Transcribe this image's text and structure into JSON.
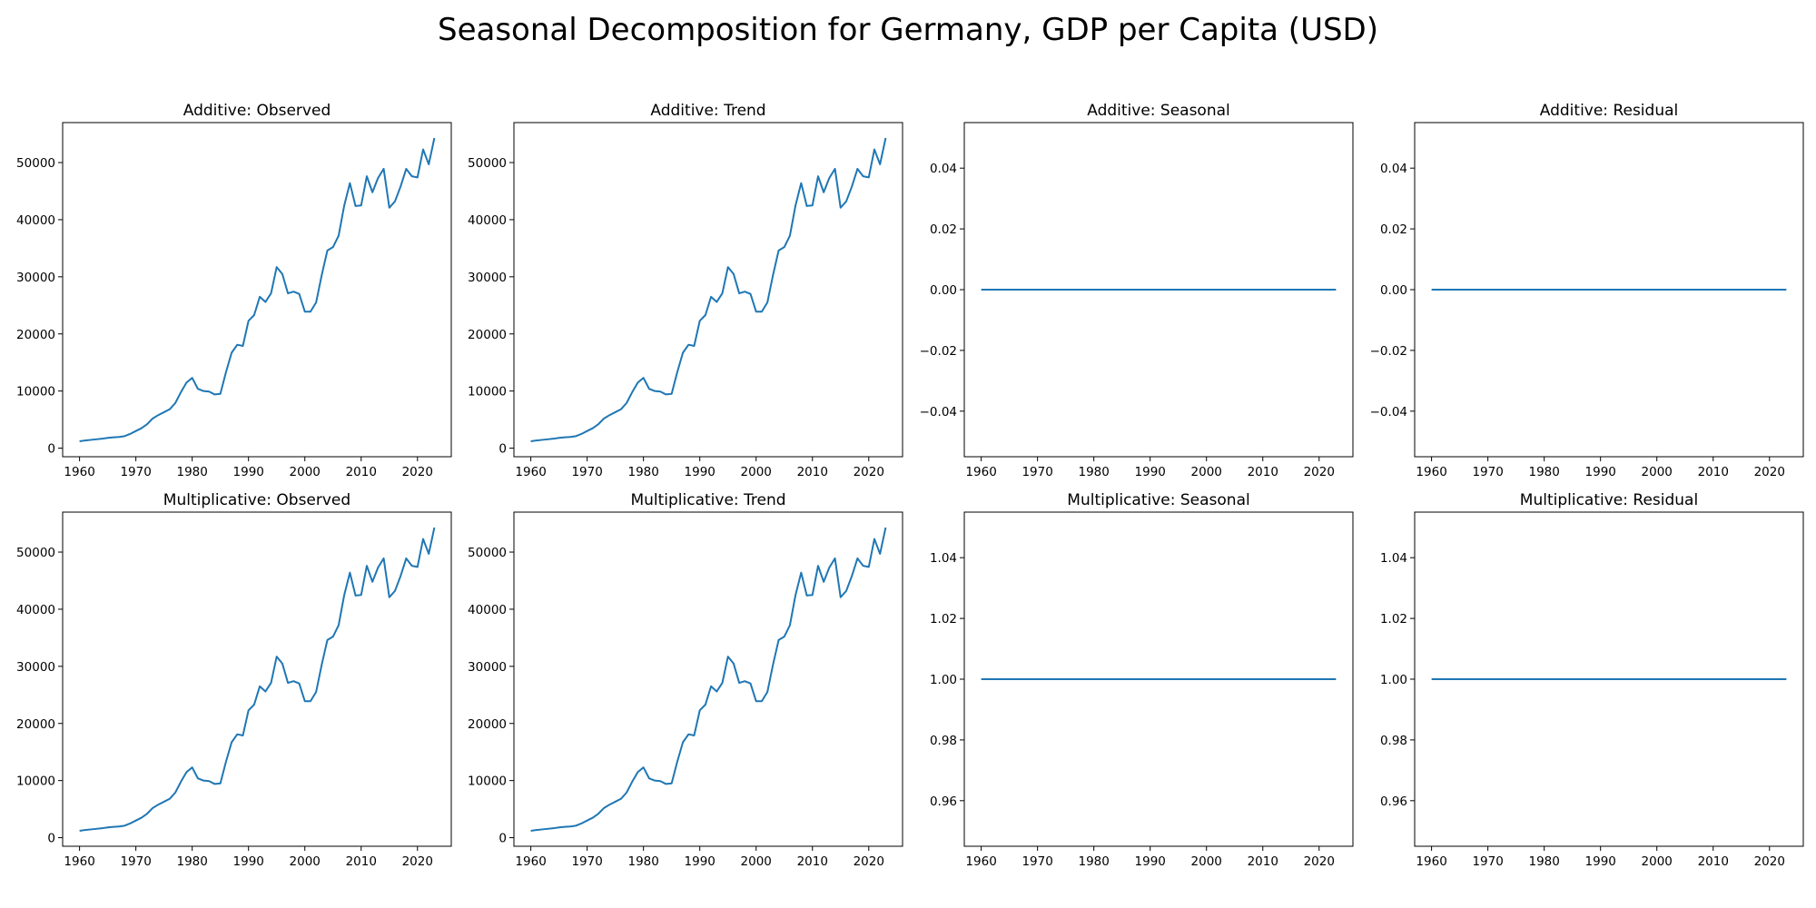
{
  "figure": {
    "suptitle": "Seasonal Decomposition for Germany, GDP per Capita (USD)",
    "line_color": "#1f77b4"
  },
  "chart_data": [
    {
      "type": "line",
      "title": "Additive: Observed",
      "xlim": [
        1957,
        2026
      ],
      "xticks": [
        1960,
        1970,
        1980,
        1990,
        2000,
        2010,
        2020
      ],
      "ylim": [
        -1500,
        57000
      ],
      "yticks": [
        0,
        10000,
        20000,
        30000,
        40000,
        50000
      ],
      "ytick_labels": [
        "0",
        "10000",
        "20000",
        "30000",
        "40000",
        "50000"
      ],
      "series": [
        {
          "values_ref": "gdp"
        }
      ]
    },
    {
      "type": "line",
      "title": "Additive: Trend",
      "xlim": [
        1957,
        2026
      ],
      "xticks": [
        1960,
        1970,
        1980,
        1990,
        2000,
        2010,
        2020
      ],
      "ylim": [
        -1500,
        57000
      ],
      "yticks": [
        0,
        10000,
        20000,
        30000,
        40000,
        50000
      ],
      "ytick_labels": [
        "0",
        "10000",
        "20000",
        "30000",
        "40000",
        "50000"
      ],
      "series": [
        {
          "values_ref": "gdp"
        }
      ]
    },
    {
      "type": "line",
      "title": "Additive: Seasonal",
      "xlim": [
        1957,
        2026
      ],
      "xticks": [
        1960,
        1970,
        1980,
        1990,
        2000,
        2010,
        2020
      ],
      "ylim": [
        -0.055,
        0.055
      ],
      "yticks": [
        -0.04,
        -0.02,
        0.0,
        0.02,
        0.04
      ],
      "ytick_labels": [
        "−0.04",
        "−0.02",
        "0.00",
        "0.02",
        "0.04"
      ],
      "series": [
        {
          "constant": 0.0
        }
      ]
    },
    {
      "type": "line",
      "title": "Additive: Residual",
      "xlim": [
        1957,
        2026
      ],
      "xticks": [
        1960,
        1970,
        1980,
        1990,
        2000,
        2010,
        2020
      ],
      "ylim": [
        -0.055,
        0.055
      ],
      "yticks": [
        -0.04,
        -0.02,
        0.0,
        0.02,
        0.04
      ],
      "ytick_labels": [
        "−0.04",
        "−0.02",
        "0.00",
        "0.02",
        "0.04"
      ],
      "series": [
        {
          "constant": 0.0
        }
      ]
    },
    {
      "type": "line",
      "title": "Multiplicative: Observed",
      "xlim": [
        1957,
        2026
      ],
      "xticks": [
        1960,
        1970,
        1980,
        1990,
        2000,
        2010,
        2020
      ],
      "ylim": [
        -1500,
        57000
      ],
      "yticks": [
        0,
        10000,
        20000,
        30000,
        40000,
        50000
      ],
      "ytick_labels": [
        "0",
        "10000",
        "20000",
        "30000",
        "40000",
        "50000"
      ],
      "series": [
        {
          "values_ref": "gdp"
        }
      ]
    },
    {
      "type": "line",
      "title": "Multiplicative: Trend",
      "xlim": [
        1957,
        2026
      ],
      "xticks": [
        1960,
        1970,
        1980,
        1990,
        2000,
        2010,
        2020
      ],
      "ylim": [
        -1500,
        57000
      ],
      "yticks": [
        0,
        10000,
        20000,
        30000,
        40000,
        50000
      ],
      "ytick_labels": [
        "0",
        "10000",
        "20000",
        "30000",
        "40000",
        "50000"
      ],
      "series": [
        {
          "values_ref": "gdp"
        }
      ]
    },
    {
      "type": "line",
      "title": "Multiplicative: Seasonal",
      "xlim": [
        1957,
        2026
      ],
      "xticks": [
        1960,
        1970,
        1980,
        1990,
        2000,
        2010,
        2020
      ],
      "ylim": [
        0.945,
        1.055
      ],
      "yticks": [
        0.96,
        0.98,
        1.0,
        1.02,
        1.04
      ],
      "ytick_labels": [
        "0.96",
        "0.98",
        "1.00",
        "1.02",
        "1.04"
      ],
      "series": [
        {
          "constant": 1.0
        }
      ]
    },
    {
      "type": "line",
      "title": "Multiplicative: Residual",
      "xlim": [
        1957,
        2026
      ],
      "xticks": [
        1960,
        1970,
        1980,
        1990,
        2000,
        2010,
        2020
      ],
      "ylim": [
        0.945,
        1.055
      ],
      "yticks": [
        0.96,
        0.98,
        1.0,
        1.02,
        1.04
      ],
      "ytick_labels": [
        "0.96",
        "0.98",
        "1.00",
        "1.02",
        "1.04"
      ],
      "series": [
        {
          "constant": 1.0
        }
      ]
    }
  ],
  "gdp_series": {
    "x_start": 1960,
    "x_end": 2023,
    "values": [
      1200,
      1350,
      1450,
      1550,
      1650,
      1800,
      1900,
      1950,
      2100,
      2500,
      3000,
      3500,
      4200,
      5200,
      5800,
      6300,
      6800,
      7900,
      9800,
      11500,
      12300,
      10400,
      10000,
      9900,
      9400,
      9500,
      13300,
      16700,
      18100,
      17900,
      22300,
      23300,
      26500,
      25600,
      27100,
      31700,
      30500,
      27100,
      27400,
      27000,
      23900,
      23900,
      25500,
      30300,
      34600,
      35200,
      37200,
      42500,
      46400,
      42400,
      42500,
      47600,
      44800,
      47300,
      48900,
      42100,
      43200,
      45800,
      48900,
      47600,
      47400,
      52300,
      49700,
      54300
    ]
  }
}
